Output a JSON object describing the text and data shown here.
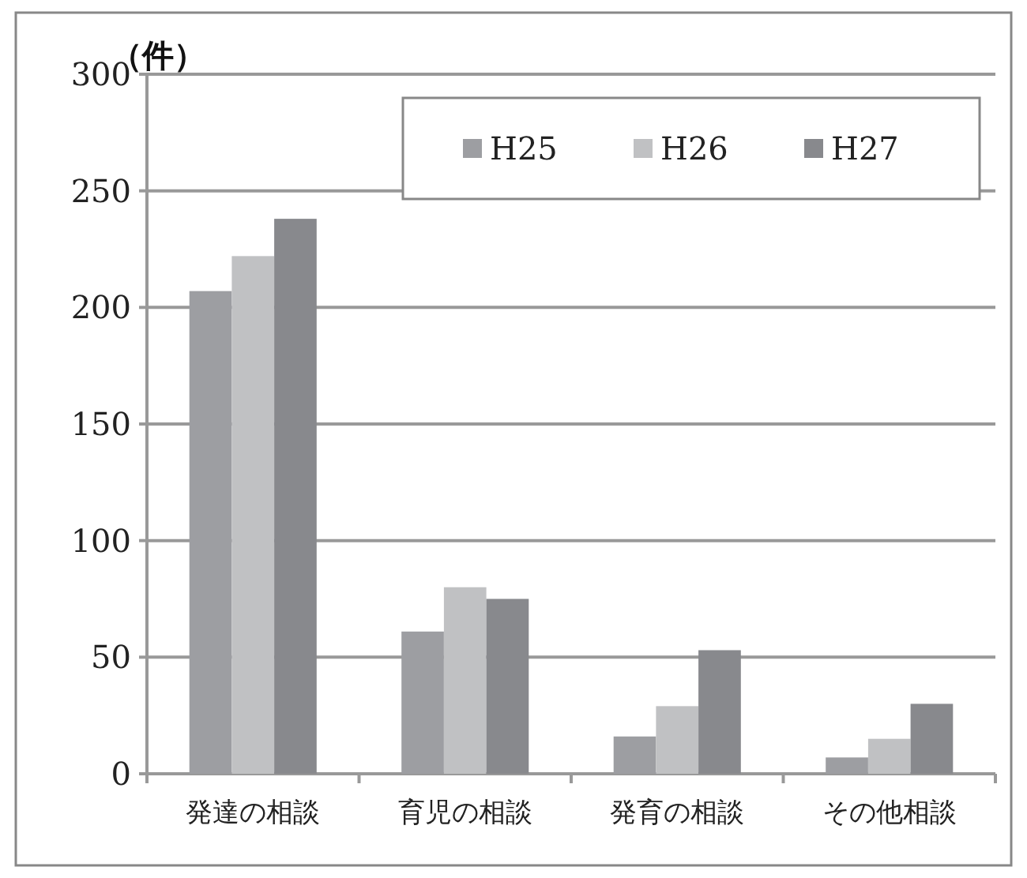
{
  "chart_data": {
    "type": "bar",
    "ylabel": "（件）",
    "categories": [
      "発達の相談",
      "育児の相談",
      "発育の相談",
      "その他相談"
    ],
    "series": [
      {
        "name": "H25",
        "color": "#9d9ea2",
        "values": [
          207,
          61,
          16,
          7
        ]
      },
      {
        "name": "H26",
        "color": "#c0c1c3",
        "values": [
          222,
          80,
          29,
          15
        ]
      },
      {
        "name": "H27",
        "color": "#88898d",
        "values": [
          238,
          75,
          53,
          30
        ]
      }
    ],
    "ylim": [
      0,
      300
    ],
    "yticks": [
      0,
      50,
      100,
      150,
      200,
      250,
      300
    ],
    "grid": "y",
    "legend": "top right"
  }
}
